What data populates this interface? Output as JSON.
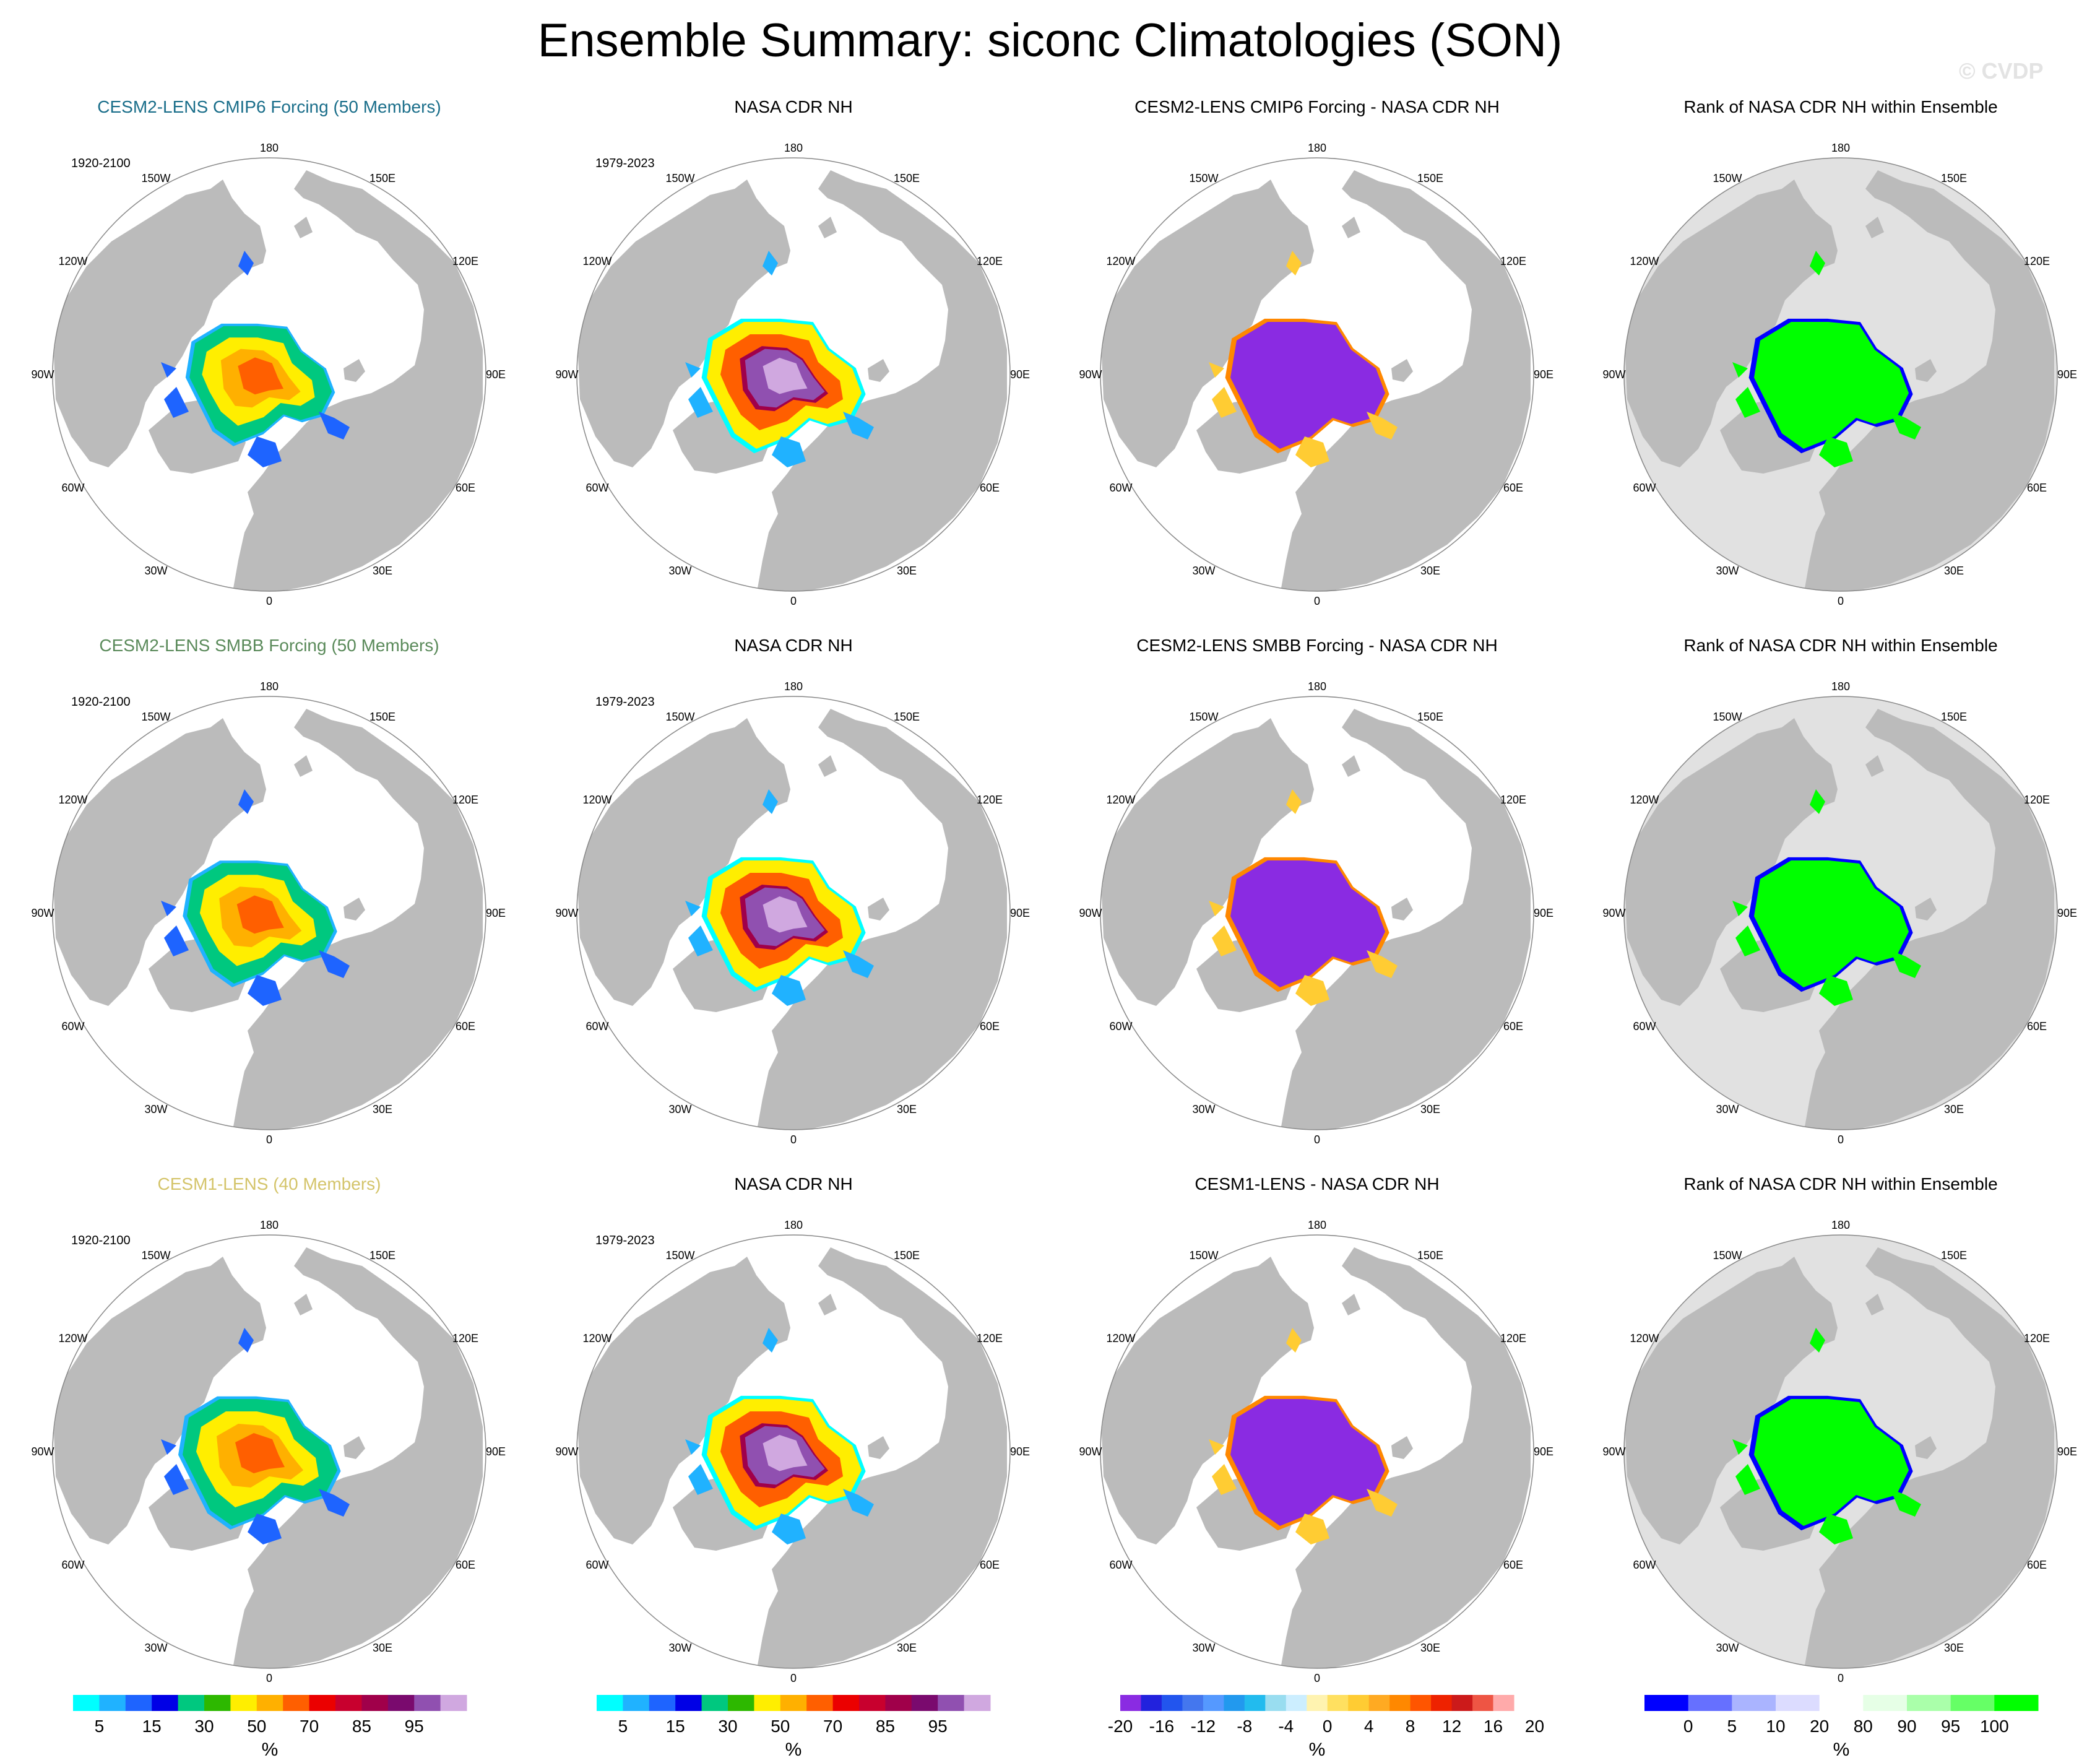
{
  "title": "Ensemble Summary: siconc Climatologies (SON)",
  "watermark": "© CVDP",
  "lon_labels": [
    "180",
    "150E",
    "120E",
    "90E",
    "60E",
    "30E",
    "0",
    "30W",
    "60W",
    "90W",
    "120W",
    "150W"
  ],
  "colors": {
    "ocean_map": "#ffffff",
    "ocean_rank": "#e1e1e1",
    "land": "#bbbbbb",
    "outline": "#888888"
  },
  "colorbars": [
    {
      "unit": "%",
      "colors": [
        "#00ffff",
        "#20b2ff",
        "#1e64ff",
        "#0000e6",
        "#00c87f",
        "#2db800",
        "#ffee00",
        "#ffb000",
        "#ff5f00",
        "#eb0000",
        "#c8002e",
        "#a0004a",
        "#7a0a6e",
        "#9050b0",
        "#d0a8e0"
      ],
      "tick_labels": [
        "5",
        "15",
        "30",
        "50",
        "70",
        "85",
        "95"
      ],
      "tick_positions": [
        1,
        3,
        5,
        7,
        9,
        11,
        13
      ]
    },
    {
      "unit": "%",
      "colors": [
        "#00ffff",
        "#20b2ff",
        "#1e64ff",
        "#0000e6",
        "#00c87f",
        "#2db800",
        "#ffee00",
        "#ffb000",
        "#ff5f00",
        "#eb0000",
        "#c8002e",
        "#a0004a",
        "#7a0a6e",
        "#9050b0",
        "#d0a8e0"
      ],
      "tick_labels": [
        "5",
        "15",
        "30",
        "50",
        "70",
        "85",
        "95"
      ],
      "tick_positions": [
        1,
        3,
        5,
        7,
        9,
        11,
        13
      ]
    },
    {
      "unit": "%",
      "colors": [
        "#8a2be2",
        "#2222dd",
        "#2255ee",
        "#4477ee",
        "#5599ff",
        "#2299ee",
        "#22bbee",
        "#99ddf0",
        "#cceeff",
        "#fff3b0",
        "#ffe060",
        "#ffcc33",
        "#ffaa22",
        "#ff8800",
        "#ff5500",
        "#ee2200",
        "#cc1a1a",
        "#ee5544",
        "#ffaaaa"
      ],
      "tick_labels": [
        "-20",
        "-16",
        "-12",
        "-8",
        "-4",
        "0",
        "4",
        "8",
        "12",
        "16",
        "20"
      ],
      "tick_positions": [
        0,
        2,
        4,
        6,
        8,
        10,
        12,
        14,
        16,
        18,
        20
      ]
    },
    {
      "unit": "%",
      "colors": [
        "#0000ff",
        "#6670ff",
        "#aab4ff",
        "#dcdcff",
        "#ffffff",
        "#e6ffe6",
        "#aaffaa",
        "#66ff66",
        "#00ff00"
      ],
      "tick_labels": [
        "0",
        "5",
        "10",
        "20",
        "80",
        "90",
        "95",
        "100"
      ],
      "tick_positions": [
        1,
        2,
        3,
        4,
        5,
        6,
        7,
        8
      ]
    }
  ],
  "rows": [
    {
      "panels": [
        {
          "title": "CESM2-LENS CMIP6 Forcing (50 Members)",
          "title_color": "#1a6e8a",
          "period": "1920-2100",
          "type": "clim",
          "scale": 0.92
        },
        {
          "title": "NASA CDR NH",
          "title_color": "#000000",
          "period": "1979-2023",
          "type": "obs"
        },
        {
          "title": "CESM2-LENS CMIP6 Forcing - NASA CDR NH",
          "title_color": "#000000",
          "period": "",
          "type": "diff"
        },
        {
          "title": "Rank of NASA CDR NH within Ensemble",
          "title_color": "#000000",
          "period": "",
          "type": "rank"
        }
      ]
    },
    {
      "panels": [
        {
          "title": "CESM2-LENS SMBB Forcing (50 Members)",
          "title_color": "#5a8a5a",
          "period": "1920-2100",
          "type": "clim",
          "scale": 0.95
        },
        {
          "title": "NASA CDR NH",
          "title_color": "#000000",
          "period": "1979-2023",
          "type": "obs"
        },
        {
          "title": "CESM2-LENS SMBB Forcing - NASA CDR NH",
          "title_color": "#000000",
          "period": "",
          "type": "diff"
        },
        {
          "title": "Rank of NASA CDR NH within Ensemble",
          "title_color": "#000000",
          "period": "",
          "type": "rank"
        }
      ]
    },
    {
      "panels": [
        {
          "title": "CESM1-LENS (40 Members)",
          "title_color": "#d4c46a",
          "period": "1920-2100",
          "type": "clim",
          "scale": 1.0
        },
        {
          "title": "NASA CDR NH",
          "title_color": "#000000",
          "period": "1979-2023",
          "type": "obs"
        },
        {
          "title": "CESM1-LENS - NASA CDR NH",
          "title_color": "#000000",
          "period": "",
          "type": "diff"
        },
        {
          "title": "Rank of NASA CDR NH within Ensemble",
          "title_color": "#000000",
          "period": "",
          "type": "rank"
        }
      ]
    }
  ]
}
